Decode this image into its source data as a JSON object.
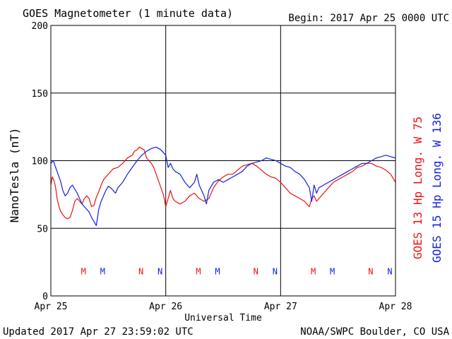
{
  "chart_data": {
    "type": "line",
    "title": "GOES Magnetometer (1 minute data)",
    "begin_label": "Begin:  2017 Apr 25 0000 UTC",
    "ylabel": "NanoTesla (nT)",
    "xlabel": "Universal Time",
    "ylim": [
      0,
      200
    ],
    "xlim_hours": [
      0,
      72
    ],
    "y_ticks": [
      0,
      50,
      100,
      150,
      200
    ],
    "x_ticks": [
      {
        "hour": 0,
        "label": "Apr 25"
      },
      {
        "hour": 24,
        "label": "Apr 26"
      },
      {
        "hour": 48,
        "label": "Apr 27"
      },
      {
        "hour": 72,
        "label": "Apr 28"
      }
    ],
    "grid": true,
    "series": [
      {
        "name": "GOES 13 Hp  Long. W 75",
        "color": "#ee1111",
        "points": [
          [
            0,
            82
          ],
          [
            0.3,
            88
          ],
          [
            0.7,
            85
          ],
          [
            1,
            80
          ],
          [
            1.3,
            72
          ],
          [
            1.7,
            66
          ],
          [
            2,
            63
          ],
          [
            2.5,
            60
          ],
          [
            3,
            58
          ],
          [
            3.5,
            57
          ],
          [
            4,
            58
          ],
          [
            4.5,
            63
          ],
          [
            5,
            70
          ],
          [
            5.5,
            72
          ],
          [
            6,
            70
          ],
          [
            6.5,
            68
          ],
          [
            7,
            72
          ],
          [
            7.5,
            74
          ],
          [
            8,
            72
          ],
          [
            8.5,
            66
          ],
          [
            9,
            67
          ],
          [
            9.5,
            73
          ],
          [
            10,
            77
          ],
          [
            10.5,
            82
          ],
          [
            11,
            86
          ],
          [
            12,
            90
          ],
          [
            13,
            94
          ],
          [
            14,
            95
          ],
          [
            15,
            98
          ],
          [
            16,
            102
          ],
          [
            17,
            104
          ],
          [
            17.5,
            107
          ],
          [
            18,
            108
          ],
          [
            18.5,
            110
          ],
          [
            19,
            109
          ],
          [
            19.5,
            108
          ],
          [
            20,
            102
          ],
          [
            20.5,
            100
          ],
          [
            21,
            98
          ],
          [
            21.5,
            95
          ],
          [
            22,
            90
          ],
          [
            22.5,
            85
          ],
          [
            23,
            80
          ],
          [
            23.5,
            75
          ],
          [
            24,
            66
          ],
          [
            24.5,
            72
          ],
          [
            25,
            78
          ],
          [
            25.5,
            72
          ],
          [
            26,
            70
          ],
          [
            27,
            68
          ],
          [
            28,
            70
          ],
          [
            29,
            74
          ],
          [
            30,
            76
          ],
          [
            31,
            72
          ],
          [
            32,
            70
          ],
          [
            33,
            72
          ],
          [
            34,
            80
          ],
          [
            35,
            85
          ],
          [
            36,
            88
          ],
          [
            37,
            90
          ],
          [
            38,
            90
          ],
          [
            39,
            93
          ],
          [
            40,
            96
          ],
          [
            41,
            97
          ],
          [
            42,
            98
          ],
          [
            43,
            96
          ],
          [
            44,
            93
          ],
          [
            45,
            90
          ],
          [
            46,
            88
          ],
          [
            47,
            87
          ],
          [
            48,
            84
          ],
          [
            49,
            80
          ],
          [
            50,
            76
          ],
          [
            51,
            74
          ],
          [
            52,
            72
          ],
          [
            53,
            70
          ],
          [
            54,
            66
          ],
          [
            54.5,
            72
          ],
          [
            55,
            74
          ],
          [
            55.5,
            70
          ],
          [
            56,
            72
          ],
          [
            57,
            76
          ],
          [
            58,
            80
          ],
          [
            59,
            84
          ],
          [
            60,
            86
          ],
          [
            61,
            88
          ],
          [
            62,
            90
          ],
          [
            63,
            92
          ],
          [
            64,
            95
          ],
          [
            65,
            96
          ],
          [
            66,
            98
          ],
          [
            67,
            98
          ],
          [
            68,
            96
          ],
          [
            69,
            95
          ],
          [
            70,
            93
          ],
          [
            71,
            90
          ],
          [
            72,
            84
          ]
        ]
      },
      {
        "name": "GOES 15 Hp  Long. W 136",
        "color": "#1122dd",
        "points": [
          [
            0,
            98
          ],
          [
            0.5,
            100
          ],
          [
            1,
            95
          ],
          [
            1.5,
            90
          ],
          [
            2,
            85
          ],
          [
            2.5,
            78
          ],
          [
            3,
            74
          ],
          [
            3.5,
            76
          ],
          [
            4,
            80
          ],
          [
            4.5,
            82
          ],
          [
            5,
            79
          ],
          [
            5.5,
            76
          ],
          [
            6,
            72
          ],
          [
            6.5,
            68
          ],
          [
            7,
            66
          ],
          [
            7.5,
            64
          ],
          [
            8,
            62
          ],
          [
            8.5,
            58
          ],
          [
            9,
            55
          ],
          [
            9.5,
            52
          ],
          [
            10,
            64
          ],
          [
            10.5,
            70
          ],
          [
            11,
            74
          ],
          [
            11.5,
            78
          ],
          [
            12,
            81
          ],
          [
            12.5,
            80
          ],
          [
            13,
            78
          ],
          [
            13.5,
            76
          ],
          [
            14,
            80
          ],
          [
            15,
            84
          ],
          [
            16,
            90
          ],
          [
            17,
            95
          ],
          [
            18,
            100
          ],
          [
            19,
            104
          ],
          [
            20,
            107
          ],
          [
            21,
            109
          ],
          [
            22,
            110
          ],
          [
            23,
            108
          ],
          [
            24,
            104
          ],
          [
            24.5,
            95
          ],
          [
            25,
            98
          ],
          [
            25.5,
            94
          ],
          [
            26,
            92
          ],
          [
            27,
            90
          ],
          [
            28,
            84
          ],
          [
            29,
            80
          ],
          [
            30,
            84
          ],
          [
            30.5,
            90
          ],
          [
            31,
            82
          ],
          [
            32,
            74
          ],
          [
            32.5,
            68
          ],
          [
            33,
            78
          ],
          [
            34,
            84
          ],
          [
            35,
            86
          ],
          [
            36,
            84
          ],
          [
            37,
            86
          ],
          [
            38,
            88
          ],
          [
            39,
            90
          ],
          [
            40,
            92
          ],
          [
            41,
            96
          ],
          [
            42,
            98
          ],
          [
            43,
            99
          ],
          [
            44,
            100
          ],
          [
            45,
            102
          ],
          [
            46,
            101
          ],
          [
            47,
            100
          ],
          [
            48,
            98
          ],
          [
            49,
            96
          ],
          [
            50,
            95
          ],
          [
            51,
            92
          ],
          [
            52,
            90
          ],
          [
            53,
            86
          ],
          [
            54,
            80
          ],
          [
            54.5,
            70
          ],
          [
            55,
            82
          ],
          [
            55.5,
            76
          ],
          [
            56,
            80
          ],
          [
            57,
            82
          ],
          [
            58,
            84
          ],
          [
            59,
            86
          ],
          [
            60,
            88
          ],
          [
            61,
            90
          ],
          [
            62,
            92
          ],
          [
            63,
            94
          ],
          [
            64,
            96
          ],
          [
            65,
            98
          ],
          [
            66,
            98
          ],
          [
            67,
            100
          ],
          [
            68,
            102
          ],
          [
            69,
            103
          ],
          [
            70,
            104
          ],
          [
            71,
            103
          ],
          [
            72,
            102
          ]
        ]
      }
    ],
    "markers": [
      {
        "label": "M",
        "hour": 8,
        "color": "#ee1111"
      },
      {
        "label": "M",
        "hour": 12,
        "color": "#1122dd"
      },
      {
        "label": "N",
        "hour": 20,
        "color": "#ee1111"
      },
      {
        "label": "N",
        "hour": 24,
        "color": "#1122dd"
      },
      {
        "label": "M",
        "hour": 32,
        "color": "#ee1111"
      },
      {
        "label": "M",
        "hour": 36,
        "color": "#1122dd"
      },
      {
        "label": "N",
        "hour": 44,
        "color": "#ee1111"
      },
      {
        "label": "N",
        "hour": 48,
        "color": "#1122dd"
      },
      {
        "label": "M",
        "hour": 56,
        "color": "#ee1111"
      },
      {
        "label": "M",
        "hour": 60,
        "color": "#1122dd"
      },
      {
        "label": "N",
        "hour": 68,
        "color": "#ee1111"
      },
      {
        "label": "N",
        "hour": 72,
        "color": "#1122dd"
      }
    ],
    "footer_left": "Updated 2017 Apr 27 23:59:02 UTC",
    "footer_right": "NOAA/SWPC Boulder, CO USA"
  }
}
